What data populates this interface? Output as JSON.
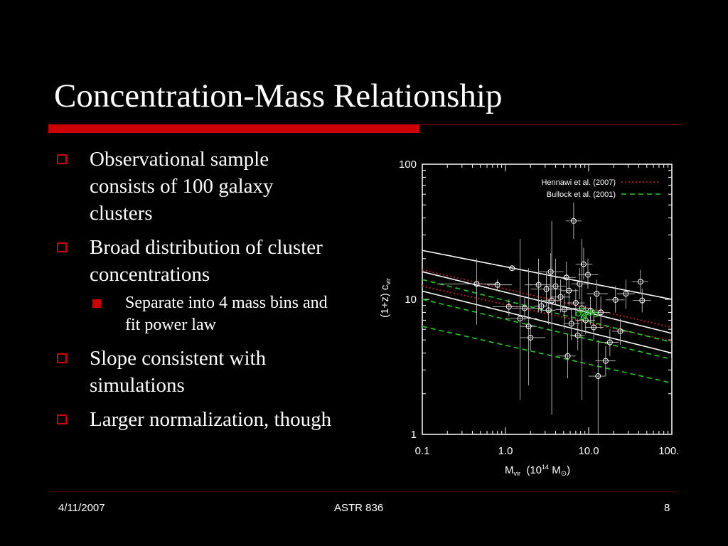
{
  "slide": {
    "title": "Concentration-Mass Relationship",
    "bullets": [
      "Observational sample consists of 100 galaxy clusters",
      "Broad distribution of cluster concentrations",
      "Slope consistent with simulations",
      "Larger normalization, though"
    ],
    "sub_bullets": [
      "Separate into 4 mass bins and fit power law"
    ]
  },
  "footer": {
    "date": "4/11/2007",
    "course": "ASTR 836",
    "page": "8"
  },
  "colors": {
    "accent": "#cc0000",
    "background": "#000000",
    "hennawi": "#cc2222",
    "bullock": "#22cc22"
  },
  "chart_data": {
    "type": "scatter",
    "x_scale": "log",
    "y_scale": "log",
    "xlim": [
      0.1,
      100.0
    ],
    "ylim": [
      1,
      100
    ],
    "xticks": [
      "0.1",
      "1.0",
      "10.0",
      "100.0"
    ],
    "yticks": [
      "1",
      "10",
      "100"
    ],
    "xlabel": {
      "main": "M",
      "sub": "vir",
      "rest": "  (10",
      "sup": "14",
      "unit": " M",
      "unit_sub": "⊙",
      "close": ")"
    },
    "ylabel": {
      "main": "(1+z) c",
      "sub": "vir"
    },
    "legend": [
      {
        "name": "Hennawi et al. (2007)",
        "style": "dotted",
        "color": "#cc2222"
      },
      {
        "name": "Bullock et al. (2001)",
        "style": "dashed",
        "color": "#22cc22"
      }
    ],
    "legend_position": "top-right",
    "fit_lines": [
      {
        "label": "observed-upper",
        "color": "#ffffff",
        "style": "solid",
        "x": [
          0.1,
          100
        ],
        "y": [
          23,
          10
        ]
      },
      {
        "label": "observed-central",
        "color": "#ffffff",
        "style": "solid",
        "x": [
          0.1,
          100
        ],
        "y": [
          16,
          5.6
        ]
      },
      {
        "label": "observed-lower",
        "color": "#ffffff",
        "style": "solid",
        "x": [
          0.1,
          100
        ],
        "y": [
          11.5,
          4.0
        ]
      },
      {
        "label": "Hennawi et al. (2007)",
        "color": "#cc2222",
        "style": "dotted",
        "x": [
          0.1,
          100
        ],
        "y": [
          16.5,
          6.2
        ]
      },
      {
        "label": "Hennawi et al. (2007)",
        "color": "#cc2222",
        "style": "dotted",
        "x": [
          0.1,
          100
        ],
        "y": [
          12.5,
          4.9
        ]
      },
      {
        "label": "Bullock et al. (2001)",
        "color": "#22cc22",
        "style": "dashed",
        "x": [
          0.1,
          100
        ],
        "y": [
          14,
          4.8
        ]
      },
      {
        "label": "Bullock et al. (2001)",
        "color": "#22cc22",
        "style": "dashed",
        "x": [
          0.1,
          100
        ],
        "y": [
          10,
          3.6
        ]
      },
      {
        "label": "Bullock et al. (2001)",
        "color": "#22cc22",
        "style": "dashed",
        "x": [
          0.1,
          100
        ],
        "y": [
          6.3,
          2.4
        ]
      }
    ],
    "points": [
      {
        "x": 0.45,
        "y": 13.0,
        "xerr": [
          0.15,
          0.8
        ],
        "yerr": [
          6.5,
          20
        ]
      },
      {
        "x": 0.8,
        "y": 12.8,
        "xerr": [
          0.6,
          1.2
        ],
        "yerr": [
          11.5,
          14
        ]
      },
      {
        "x": 1.2,
        "y": 17.0,
        "xerr": [
          1.1,
          1.3
        ],
        "yerr": [
          16.5,
          17.5
        ]
      },
      {
        "x": 1.1,
        "y": 8.8,
        "xerr": [
          0.7,
          1.8
        ],
        "yerr": [
          7.5,
          10
        ]
      },
      {
        "x": 1.5,
        "y": 7.2,
        "xerr": [
          1.0,
          2.4
        ],
        "yerr": [
          1.8,
          28
        ]
      },
      {
        "x": 1.7,
        "y": 8.6,
        "xerr": [
          1.2,
          2.6
        ],
        "yerr": [
          7,
          10.5
        ]
      },
      {
        "x": 2.0,
        "y": 5.2,
        "xerr": [
          1.5,
          3.0
        ],
        "yerr": [
          4.2,
          6.5
        ]
      },
      {
        "x": 1.9,
        "y": 6.3,
        "xerr": [
          1.5,
          2.4
        ],
        "yerr": [
          2.3,
          17
        ]
      },
      {
        "x": 2.5,
        "y": 12.8,
        "xerr": [
          1.7,
          3.5
        ],
        "yerr": [
          8,
          20
        ]
      },
      {
        "x": 2.7,
        "y": 8.9,
        "xerr": [
          2.2,
          3.2
        ],
        "yerr": [
          8,
          10
        ]
      },
      {
        "x": 3.1,
        "y": 11.9,
        "xerr": [
          2.0,
          4.8
        ],
        "yerr": [
          9,
          16
        ]
      },
      {
        "x": 3.3,
        "y": 8.3,
        "xerr": [
          2.6,
          4.0
        ],
        "yerr": [
          6.5,
          10
        ]
      },
      {
        "x": 3.5,
        "y": 16.0,
        "xerr": [
          2.5,
          5.0
        ],
        "yerr": [
          10,
          22
        ]
      },
      {
        "x": 3.6,
        "y": 9.8,
        "xerr": [
          2.8,
          4.6
        ],
        "yerr": [
          1.4,
          38
        ]
      },
      {
        "x": 4.0,
        "y": 12.5,
        "xerr": [
          3.0,
          5.3
        ],
        "yerr": [
          9,
          20
        ]
      },
      {
        "x": 4.6,
        "y": 10.4,
        "xerr": [
          3.5,
          6.0
        ],
        "yerr": [
          8,
          14
        ]
      },
      {
        "x": 5.1,
        "y": 8.4,
        "xerr": [
          4.0,
          6.5
        ],
        "yerr": [
          6,
          11
        ]
      },
      {
        "x": 5.4,
        "y": 14.5,
        "xerr": [
          4.0,
          7.0
        ],
        "yerr": [
          11,
          19
        ]
      },
      {
        "x": 5.6,
        "y": 3.8,
        "xerr": [
          4.2,
          7.0
        ],
        "yerr": [
          2.6,
          5.5
        ]
      },
      {
        "x": 5.8,
        "y": 11.6,
        "xerr": [
          4.5,
          7.5
        ],
        "yerr": [
          9,
          14
        ]
      },
      {
        "x": 6.2,
        "y": 6.6,
        "xerr": [
          5.0,
          7.8
        ],
        "yerr": [
          5,
          8.5
        ]
      },
      {
        "x": 6.6,
        "y": 38.0,
        "xerr": [
          5.3,
          8.2
        ],
        "yerr": [
          28,
          52
        ]
      },
      {
        "x": 7.0,
        "y": 9.4,
        "xerr": [
          5.5,
          9.0
        ],
        "yerr": [
          7.5,
          12
        ]
      },
      {
        "x": 7.4,
        "y": 5.4,
        "xerr": [
          6.0,
          9.0
        ],
        "yerr": [
          4.2,
          7.2
        ]
      },
      {
        "x": 7.8,
        "y": 13.0,
        "xerr": [
          6.2,
          10.0
        ],
        "yerr": [
          10,
          17
        ]
      },
      {
        "x": 8.3,
        "y": 8.6,
        "xerr": [
          6.5,
          11.0
        ],
        "yerr": [
          1.8,
          28
        ]
      },
      {
        "x": 8.7,
        "y": 18.2,
        "xerr": [
          7.0,
          11.0
        ],
        "yerr": [
          14,
          24
        ]
      },
      {
        "x": 9.2,
        "y": 7.0,
        "xerr": [
          7.0,
          12.0
        ],
        "yerr": [
          5.5,
          9
        ]
      },
      {
        "x": 9.8,
        "y": 15.2,
        "xerr": [
          7.5,
          13.0
        ],
        "yerr": [
          12,
          20
        ]
      },
      {
        "x": 10.5,
        "y": 8.2,
        "xerr": [
          8.0,
          14.0
        ],
        "yerr": [
          6.5,
          10.5
        ]
      },
      {
        "x": 11.5,
        "y": 6.2,
        "xerr": [
          9.0,
          15.0
        ],
        "yerr": [
          5,
          8
        ]
      },
      {
        "x": 12.5,
        "y": 11.0,
        "xerr": [
          9.5,
          17.0
        ],
        "yerr": [
          8.5,
          14
        ]
      },
      {
        "x": 13.0,
        "y": 2.7,
        "xerr": [
          10.0,
          16.0
        ],
        "yerr": [
          1.0,
          5.0
        ]
      },
      {
        "x": 14.0,
        "y": 8.0,
        "xerr": [
          11.0,
          18.0
        ],
        "yerr": [
          6,
          10.5
        ]
      },
      {
        "x": 16.0,
        "y": 3.5,
        "xerr": [
          12.0,
          21.0
        ],
        "yerr": [
          2.7,
          4.5
        ]
      },
      {
        "x": 18.0,
        "y": 4.8,
        "xerr": [
          14.0,
          23.0
        ],
        "yerr": [
          3.8,
          6
        ]
      },
      {
        "x": 21.0,
        "y": 9.9,
        "xerr": [
          16.0,
          27.0
        ],
        "yerr": [
          8,
          12.5
        ]
      },
      {
        "x": 24.0,
        "y": 5.8,
        "xerr": [
          19.0,
          30.0
        ],
        "yerr": [
          4.6,
          7.2
        ]
      },
      {
        "x": 28.0,
        "y": 11.0,
        "xerr": [
          22.0,
          36.0
        ],
        "yerr": [
          8.5,
          14
        ]
      },
      {
        "x": 42.0,
        "y": 13.5,
        "xerr": [
          33.0,
          52.0
        ],
        "yerr": [
          11,
          16.5
        ]
      },
      {
        "x": 44.0,
        "y": 9.8,
        "xerr": [
          34.0,
          56.0
        ],
        "yerr": [
          8,
          12
        ]
      }
    ],
    "green_points": [
      {
        "x": 7.5,
        "y": 7.8
      },
      {
        "x": 8.2,
        "y": 8.3
      },
      {
        "x": 9.0,
        "y": 7.6
      },
      {
        "x": 9.6,
        "y": 8.0
      },
      {
        "x": 10.3,
        "y": 7.9
      },
      {
        "x": 11.2,
        "y": 8.1
      },
      {
        "x": 12.2,
        "y": 7.7
      },
      {
        "x": 8.6,
        "y": 7.4
      }
    ]
  }
}
